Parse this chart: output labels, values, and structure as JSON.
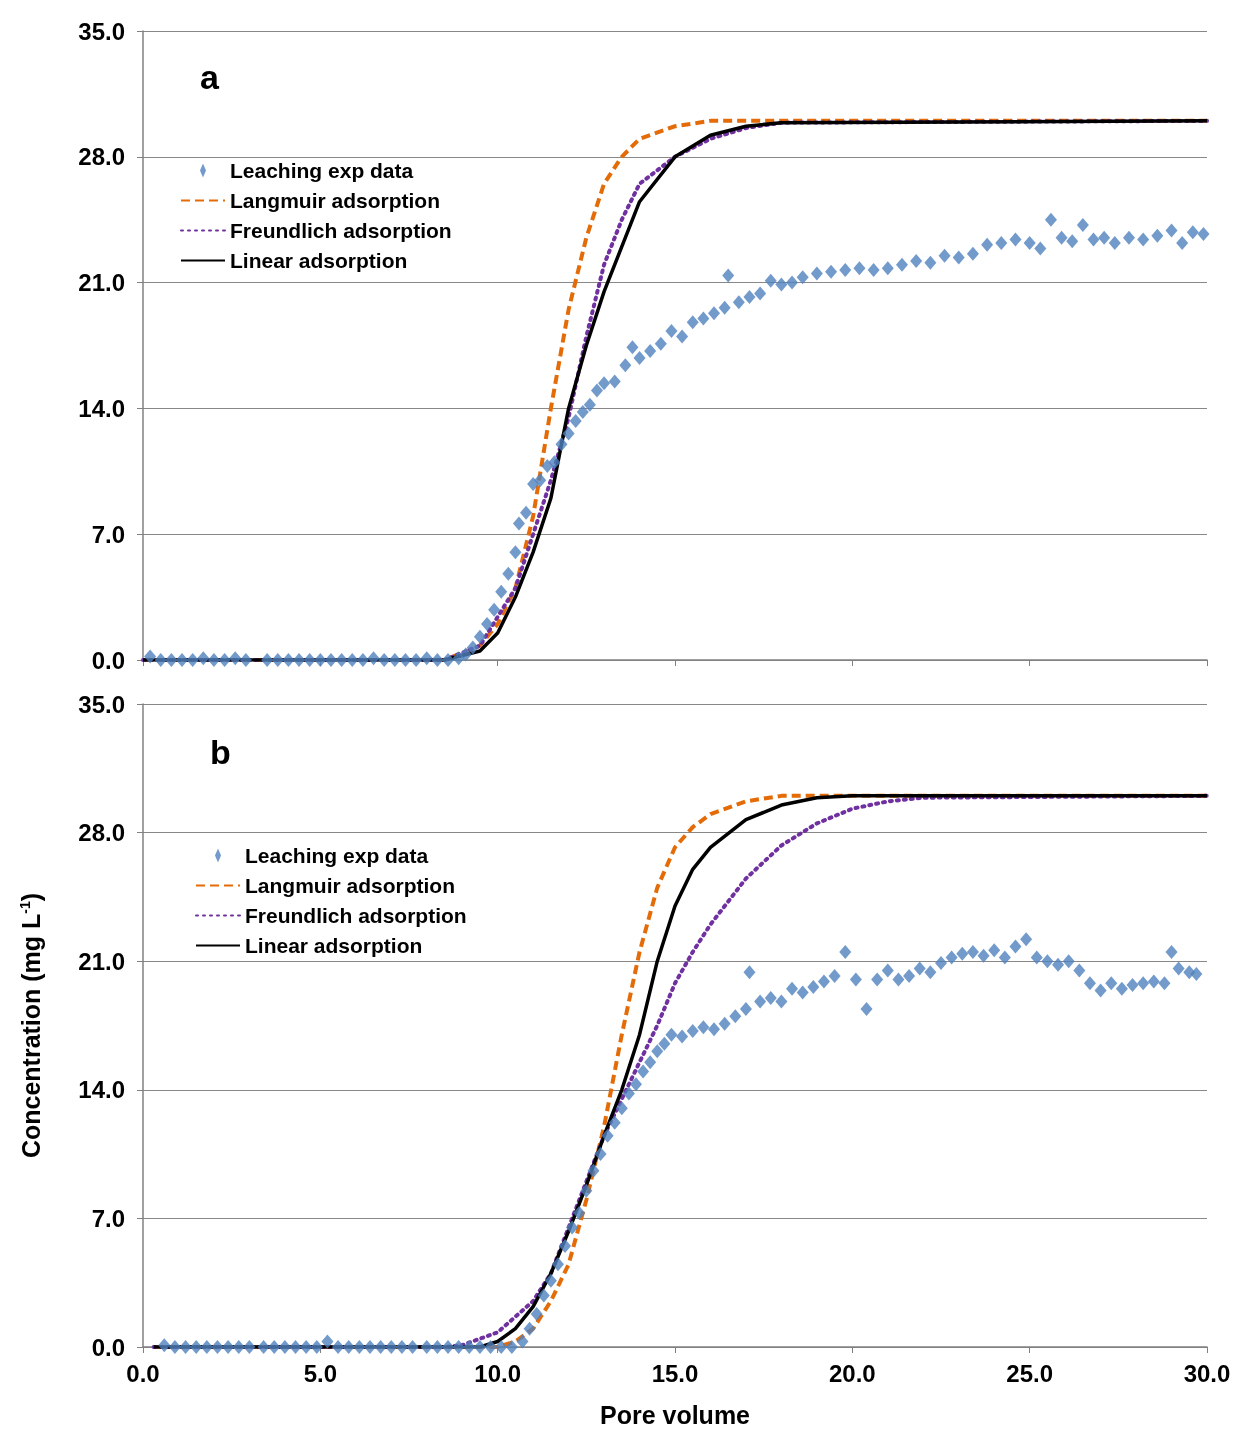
{
  "chart_data": [
    {
      "type": "scatter",
      "annotations": [
        "a"
      ],
      "xlim": [
        0,
        30
      ],
      "ylim": [
        0,
        35
      ],
      "tick_labels": "y",
      "grid": "y",
      "legend": "top left",
      "xticks": [
        {
          "value": 0,
          "label": null
        },
        {
          "value": 5,
          "label": null
        },
        {
          "value": 10,
          "label": null
        },
        {
          "value": 15,
          "label": null
        },
        {
          "value": 20,
          "label": null
        },
        {
          "value": 25,
          "label": null
        },
        {
          "value": 30,
          "label": null
        }
      ],
      "yticks": [
        {
          "value": 0,
          "label": "0.0"
        },
        {
          "value": 7,
          "label": "7.0"
        },
        {
          "value": 14,
          "label": "14.0"
        },
        {
          "value": 21,
          "label": "21.0"
        },
        {
          "value": 28,
          "label": "28.0"
        },
        {
          "value": 35,
          "label": "35.0"
        }
      ],
      "series": [
        {
          "name": "Leaching exp data",
          "marker": "diamond",
          "color": "#4f81bd",
          "x": [
            0.2,
            0.5,
            0.8,
            1.1,
            1.4,
            1.7,
            2.0,
            2.3,
            2.6,
            2.9,
            3.5,
            3.8,
            4.1,
            4.4,
            4.7,
            5.0,
            5.3,
            5.6,
            5.9,
            6.2,
            6.5,
            6.8,
            7.1,
            7.4,
            7.7,
            8.0,
            8.3,
            8.6,
            8.9,
            9.1,
            9.3,
            9.5,
            9.7,
            9.9,
            10.1,
            10.3,
            10.5,
            10.6,
            10.8,
            11.0,
            11.2,
            11.4,
            11.6,
            11.8,
            12.0,
            12.2,
            12.4,
            12.6,
            12.8,
            13.0,
            13.3,
            13.6,
            13.8,
            14.0,
            14.3,
            14.6,
            14.9,
            15.2,
            15.5,
            15.8,
            16.1,
            16.4,
            16.5,
            16.8,
            17.1,
            17.4,
            17.7,
            18.0,
            18.3,
            18.6,
            19.0,
            19.4,
            19.8,
            20.2,
            20.6,
            21.0,
            21.4,
            21.8,
            22.2,
            22.6,
            23.0,
            23.4,
            23.8,
            24.2,
            24.6,
            25.0,
            25.3,
            25.6,
            25.9,
            26.2,
            26.5,
            26.8,
            27.1,
            27.4,
            27.8,
            28.2,
            28.6,
            29.0,
            29.3,
            29.6,
            29.9
          ],
          "values": [
            0.2,
            0,
            0,
            0,
            0,
            0.1,
            0,
            0,
            0.1,
            0,
            0,
            0,
            0,
            0,
            0,
            0,
            0,
            0,
            0,
            0,
            0.1,
            0,
            0,
            0,
            0,
            0.1,
            0,
            0,
            0.1,
            0.3,
            0.7,
            1.3,
            2.0,
            2.8,
            3.8,
            4.8,
            6.0,
            7.6,
            8.2,
            9.8,
            10.0,
            10.8,
            11.0,
            12.0,
            12.6,
            13.3,
            13.8,
            14.2,
            15.0,
            15.4,
            15.5,
            16.4,
            17.4,
            16.8,
            17.2,
            17.6,
            18.3,
            18.0,
            18.8,
            19.0,
            19.3,
            19.6,
            21.4,
            19.9,
            20.2,
            20.4,
            21.1,
            20.9,
            21.0,
            21.3,
            21.5,
            21.6,
            21.7,
            21.8,
            21.7,
            21.8,
            22.0,
            22.2,
            22.1,
            22.5,
            22.4,
            22.6,
            23.1,
            23.2,
            23.4,
            23.2,
            22.9,
            24.5,
            23.5,
            23.3,
            24.2,
            23.4,
            23.5,
            23.2,
            23.5,
            23.4,
            23.6,
            23.9,
            23.2,
            23.8,
            23.7
          ]
        },
        {
          "name": "Langmuir adsorption",
          "type": "line",
          "line_style": "dashed",
          "marker": "none",
          "color": "#e36c09",
          "x": [
            0,
            8.5,
            9.5,
            10,
            10.5,
            11,
            11.5,
            12,
            12.5,
            13,
            13.5,
            14,
            15,
            16,
            30
          ],
          "values": [
            0,
            0,
            0.8,
            2,
            4,
            8,
            14,
            19.5,
            23.5,
            26.5,
            28,
            29,
            29.7,
            30,
            30
          ]
        },
        {
          "name": "Freundlich adsorption",
          "type": "line",
          "line_style": "dotted",
          "marker": "none",
          "color": "#7030a0",
          "x": [
            0,
            8.5,
            9.5,
            10.5,
            11,
            11.5,
            12,
            12.5,
            13,
            13.5,
            14,
            15,
            16,
            17,
            18,
            30
          ],
          "values": [
            0,
            0,
            0.8,
            4,
            7,
            10,
            13.5,
            18,
            22,
            24.5,
            26.5,
            28,
            29,
            29.6,
            29.9,
            30
          ]
        },
        {
          "name": "Linear adsorption",
          "type": "line",
          "line_style": "solid",
          "marker": "none",
          "color": "#000000",
          "x": [
            0,
            8.5,
            9.5,
            10,
            10.5,
            11,
            11.5,
            12,
            12.5,
            13,
            13.5,
            14,
            15,
            16,
            17,
            18,
            30
          ],
          "values": [
            0,
            0,
            0.5,
            1.5,
            3.5,
            6,
            9,
            14,
            17.5,
            20.5,
            23,
            25.5,
            28,
            29.2,
            29.7,
            29.9,
            30
          ]
        }
      ]
    },
    {
      "type": "scatter",
      "annotations": [
        "b"
      ],
      "xlabel": "Pore volume",
      "ylabel": "Concentration (mg L$^{-1}$)",
      "xlim": [
        0,
        30
      ],
      "ylim": [
        0,
        35
      ],
      "grid": "y",
      "legend": "top left",
      "xticks": [
        {
          "value": 0,
          "label": "0.0"
        },
        {
          "value": 5,
          "label": "5.0"
        },
        {
          "value": 10,
          "label": "10.0"
        },
        {
          "value": 15,
          "label": "15.0"
        },
        {
          "value": 20,
          "label": "20.0"
        },
        {
          "value": 25,
          "label": "25.0"
        },
        {
          "value": 30,
          "label": "30.0"
        }
      ],
      "yticks": [
        {
          "value": 0,
          "label": "0.0"
        },
        {
          "value": 7,
          "label": "7.0"
        },
        {
          "value": 14,
          "label": "14.0"
        },
        {
          "value": 21,
          "label": "21.0"
        },
        {
          "value": 28,
          "label": "28.0"
        },
        {
          "value": 35,
          "label": "35.0"
        }
      ],
      "series": [
        {
          "name": "Leaching exp data",
          "marker": "diamond",
          "color": "#4f81bd",
          "x": [
            0.6,
            0.9,
            1.2,
            1.5,
            1.8,
            2.1,
            2.4,
            2.7,
            3.0,
            3.4,
            3.7,
            4.0,
            4.3,
            4.6,
            4.9,
            5.2,
            5.5,
            5.8,
            6.1,
            6.4,
            6.7,
            7.0,
            7.3,
            7.6,
            8.0,
            8.3,
            8.6,
            8.9,
            9.2,
            9.5,
            9.8,
            10.1,
            10.4,
            10.7,
            10.9,
            11.1,
            11.3,
            11.5,
            11.7,
            11.9,
            12.1,
            12.3,
            12.5,
            12.7,
            12.9,
            13.1,
            13.3,
            13.5,
            13.7,
            13.9,
            14.1,
            14.3,
            14.5,
            14.7,
            14.9,
            15.2,
            15.5,
            15.8,
            16.1,
            16.4,
            16.7,
            17.0,
            17.1,
            17.4,
            17.7,
            18.0,
            18.3,
            18.6,
            18.9,
            19.2,
            19.5,
            19.8,
            20.1,
            20.4,
            20.7,
            21.0,
            21.3,
            21.6,
            21.9,
            22.2,
            22.5,
            22.8,
            23.1,
            23.4,
            23.7,
            24.0,
            24.3,
            24.6,
            24.9,
            25.2,
            25.5,
            25.8,
            26.1,
            26.4,
            26.7,
            27.0,
            27.3,
            27.6,
            27.9,
            28.2,
            28.5,
            28.8,
            29.0,
            29.2,
            29.5,
            29.7
          ],
          "values": [
            0.1,
            0,
            0,
            0,
            0,
            0,
            0,
            0,
            0,
            0,
            0,
            0,
            0,
            0,
            0,
            0.3,
            0,
            0,
            0,
            0,
            0,
            0,
            0,
            0,
            0,
            0,
            0,
            0,
            0,
            0,
            0,
            0,
            0,
            0.3,
            1.0,
            1.8,
            2.8,
            3.6,
            4.5,
            5.5,
            6.5,
            7.3,
            8.5,
            9.6,
            10.5,
            11.5,
            12.2,
            13.0,
            13.8,
            14.3,
            15.0,
            15.5,
            16.1,
            16.5,
            17.0,
            16.9,
            17.2,
            17.4,
            17.3,
            17.6,
            18.0,
            18.4,
            20.4,
            18.8,
            19.0,
            18.8,
            19.5,
            19.3,
            19.6,
            19.9,
            20.2,
            21.5,
            20.0,
            18.4,
            20.0,
            20.5,
            20.0,
            20.2,
            20.6,
            20.4,
            20.9,
            21.2,
            21.4,
            21.5,
            21.3,
            21.6,
            21.2,
            21.8,
            22.2,
            21.2,
            21.0,
            20.8,
            21.0,
            20.5,
            19.8,
            19.4,
            19.8,
            19.5,
            19.7,
            19.8,
            19.9,
            19.8,
            21.5,
            20.6,
            20.4,
            20.3
          ]
        },
        {
          "name": "Langmuir adsorption",
          "type": "line",
          "line_style": "dashed",
          "marker": "none",
          "color": "#e36c09",
          "x": [
            0.3,
            10,
            10.5,
            11,
            11.5,
            12,
            12.5,
            13,
            13.5,
            14,
            14.5,
            15,
            15.5,
            16,
            17,
            18,
            30
          ],
          "values": [
            0,
            0,
            0.3,
            1,
            2.5,
            4.5,
            8,
            12,
            17,
            21.5,
            25,
            27.2,
            28.3,
            29,
            29.7,
            30,
            30
          ]
        },
        {
          "name": "Freundlich adsorption",
          "type": "line",
          "line_style": "dotted",
          "marker": "none",
          "color": "#7030a0",
          "x": [
            0.3,
            8.5,
            9,
            10,
            11,
            11.5,
            12,
            12.5,
            13,
            13.5,
            14,
            14.5,
            15,
            15.5,
            16,
            17,
            18,
            19,
            20,
            21,
            22,
            30
          ],
          "values": [
            0,
            0,
            0.1,
            0.8,
            2.5,
            4,
            6.5,
            9,
            11.5,
            13.5,
            15.5,
            17.5,
            19.8,
            21.5,
            23,
            25.5,
            27.3,
            28.5,
            29.3,
            29.7,
            29.9,
            30
          ]
        },
        {
          "name": "Linear adsorption",
          "type": "line",
          "line_style": "solid",
          "marker": "none",
          "color": "#000000",
          "x": [
            0.3,
            9.5,
            10,
            10.5,
            11,
            11.5,
            12,
            12.5,
            13,
            13.5,
            14,
            14.5,
            15,
            15.5,
            16,
            17,
            18,
            19,
            20,
            30
          ],
          "values": [
            0,
            0,
            0.3,
            1,
            2.2,
            4,
            6.3,
            8.8,
            11.5,
            14,
            17,
            21,
            24,
            26,
            27.2,
            28.7,
            29.5,
            29.9,
            30,
            30
          ]
        }
      ]
    }
  ]
}
